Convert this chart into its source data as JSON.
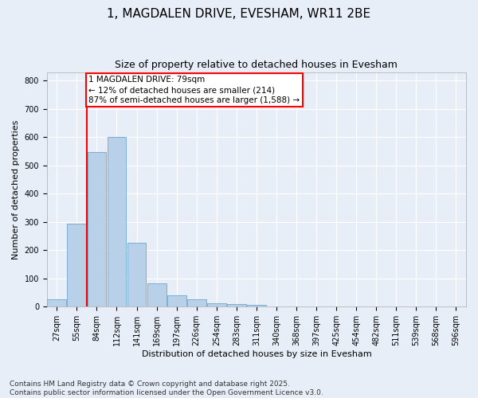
{
  "title": "1, MAGDALEN DRIVE, EVESHAM, WR11 2BE",
  "subtitle": "Size of property relative to detached houses in Evesham",
  "xlabel": "Distribution of detached houses by size in Evesham",
  "ylabel": "Number of detached properties",
  "categories": [
    "27sqm",
    "55sqm",
    "84sqm",
    "112sqm",
    "141sqm",
    "169sqm",
    "197sqm",
    "226sqm",
    "254sqm",
    "283sqm",
    "311sqm",
    "340sqm",
    "368sqm",
    "397sqm",
    "425sqm",
    "454sqm",
    "482sqm",
    "511sqm",
    "539sqm",
    "568sqm",
    "596sqm"
  ],
  "values": [
    25,
    293,
    548,
    600,
    225,
    82,
    40,
    26,
    12,
    10,
    6,
    0,
    0,
    0,
    0,
    0,
    0,
    0,
    0,
    0,
    0
  ],
  "bar_color": "#b8d0e8",
  "bar_edge_color": "#7aaed4",
  "vline_x": 1.5,
  "vline_color": "red",
  "annotation_text": "1 MAGDALEN DRIVE: 79sqm\n← 12% of detached houses are smaller (214)\n87% of semi-detached houses are larger (1,588) →",
  "annotation_box_color": "white",
  "annotation_box_edge_color": "red",
  "ylim": [
    0,
    830
  ],
  "yticks": [
    0,
    100,
    200,
    300,
    400,
    500,
    600,
    700,
    800
  ],
  "footer_text": "Contains HM Land Registry data © Crown copyright and database right 2025.\nContains public sector information licensed under the Open Government Licence v3.0.",
  "background_color": "#e8eef8",
  "grid_color": "white",
  "title_fontsize": 11,
  "subtitle_fontsize": 9,
  "axis_label_fontsize": 8,
  "tick_fontsize": 7,
  "footer_fontsize": 6.5,
  "annotation_fontsize": 7.5
}
